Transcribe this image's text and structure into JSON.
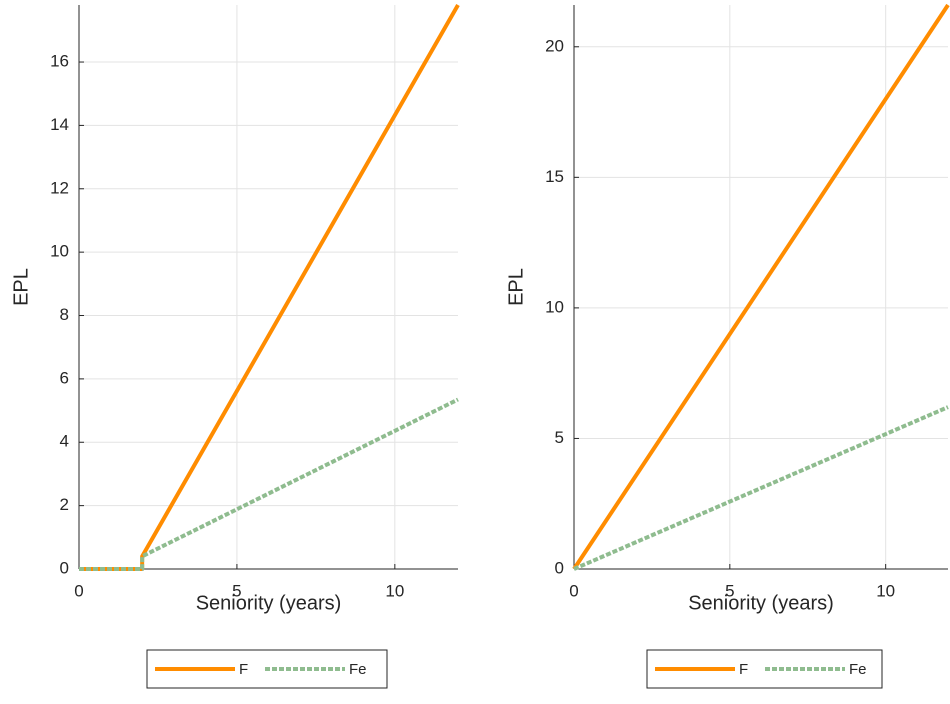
{
  "chart_data": [
    {
      "type": "line",
      "xlabel": "Seniority (years)",
      "ylabel": "EPL",
      "x": [
        0,
        2,
        2,
        12
      ],
      "series": [
        {
          "name": "F",
          "color": "#ff8c00",
          "values": [
            0,
            0,
            0.4,
            17.8
          ]
        },
        {
          "name": "Fe",
          "color": "#8fbc8f",
          "values": [
            0,
            0,
            0.4,
            5.35
          ]
        }
      ],
      "xlim": [
        0,
        12
      ],
      "ylim": [
        0,
        17.8
      ],
      "xticks": [
        0,
        5,
        10
      ],
      "yticks": [
        0,
        2,
        4,
        6,
        8,
        10,
        12,
        14,
        16
      ],
      "grid": true
    },
    {
      "type": "line",
      "xlabel": "Seniority (years)",
      "ylabel": "EPL",
      "x": [
        0,
        12
      ],
      "series": [
        {
          "name": "F",
          "color": "#ff8c00",
          "values": [
            0,
            21.6
          ]
        },
        {
          "name": "Fe",
          "color": "#8fbc8f",
          "values": [
            0,
            6.2
          ]
        }
      ],
      "xlim": [
        0,
        12
      ],
      "ylim": [
        0,
        21.6
      ],
      "xticks": [
        0,
        5,
        10
      ],
      "yticks": [
        0,
        5,
        10,
        15,
        20
      ],
      "grid": true
    }
  ]
}
